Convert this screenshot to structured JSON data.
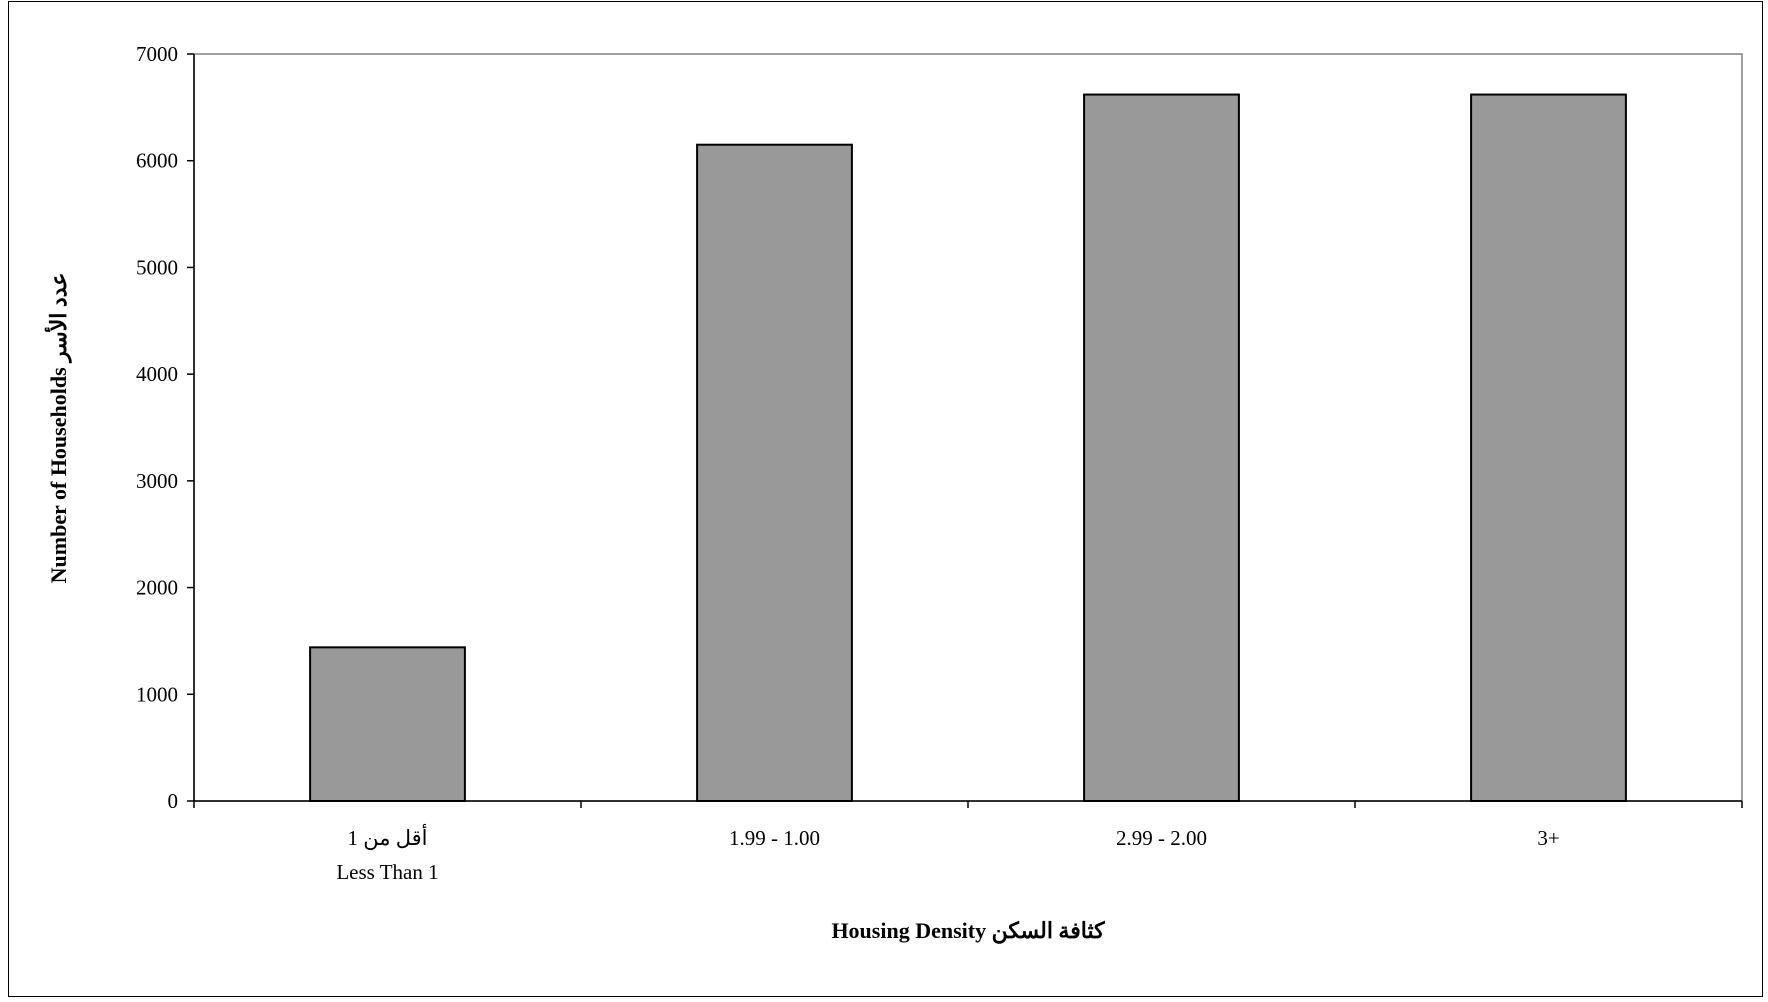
{
  "chart_data": {
    "type": "bar",
    "title": "",
    "categories": [
      [
        "أقل من 1",
        "Less Than 1"
      ],
      [
        "1.99 - 1.00"
      ],
      [
        "2.99 - 2.00"
      ],
      [
        "3+"
      ]
    ],
    "values": [
      1440,
      6150,
      6620,
      6620
    ],
    "xlabel": "كثافة السكن  Housing Density",
    "ylabel": "Number of Households  عدد الأسر",
    "ylim": [
      0,
      7000
    ],
    "yticks": [
      0,
      1000,
      2000,
      3000,
      4000,
      5000,
      6000,
      7000
    ],
    "grid": false,
    "legend": "none",
    "bar_color": "#999999",
    "bar_edge_color": "#000000",
    "plot_border_color": "#808080"
  }
}
